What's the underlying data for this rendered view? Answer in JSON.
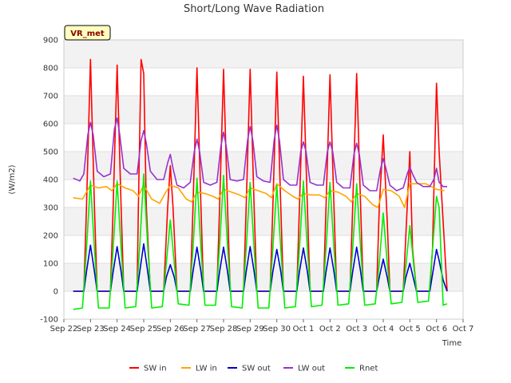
{
  "chart_data": {
    "type": "line",
    "title": "Short/Long Wave Radiation",
    "badge": "VR_met",
    "xlabel": "Time",
    "ylabel": "(W/m2)",
    "ylim": [
      -100,
      900
    ],
    "xlim": [
      0,
      15
    ],
    "yticks": [
      -100,
      0,
      100,
      200,
      300,
      400,
      500,
      600,
      700,
      800,
      900
    ],
    "xticks": [
      {
        "pos": 0,
        "label": "Sep 22"
      },
      {
        "pos": 1,
        "label": "Sep 23"
      },
      {
        "pos": 2,
        "label": "Sep 24"
      },
      {
        "pos": 3,
        "label": "Sep 25"
      },
      {
        "pos": 4,
        "label": "Sep 26"
      },
      {
        "pos": 5,
        "label": "Sep 27"
      },
      {
        "pos": 6,
        "label": "Sep 28"
      },
      {
        "pos": 7,
        "label": "Sep 29"
      },
      {
        "pos": 8,
        "label": "Sep 30"
      },
      {
        "pos": 9,
        "label": "Oct 1"
      },
      {
        "pos": 10,
        "label": "Oct 2"
      },
      {
        "pos": 11,
        "label": "Oct 3"
      },
      {
        "pos": 12,
        "label": "Oct 4"
      },
      {
        "pos": 13,
        "label": "Oct 5"
      },
      {
        "pos": 14,
        "label": "Oct 6"
      },
      {
        "pos": 15,
        "label": "Oct 7"
      }
    ],
    "x_note": "x values are days counted from Sep 22 00:00",
    "grid": true,
    "legend_position": "bottom",
    "series": [
      {
        "name": "SW in",
        "color": "#ff0000",
        "x": [
          0.35,
          0.75,
          0.85,
          1.0,
          1.15,
          1.25,
          1.45,
          1.75,
          1.85,
          2.0,
          2.15,
          2.25,
          2.45,
          2.75,
          2.8,
          2.9,
          3.0,
          3.1,
          3.25,
          3.45,
          3.75,
          3.9,
          4.0,
          4.1,
          4.25,
          4.45,
          4.75,
          4.85,
          5.0,
          5.15,
          5.25,
          5.45,
          5.75,
          5.85,
          6.0,
          6.15,
          6.25,
          6.45,
          6.75,
          6.85,
          7.0,
          7.15,
          7.25,
          7.45,
          7.75,
          7.85,
          8.0,
          8.15,
          8.25,
          8.45,
          8.75,
          8.85,
          9.0,
          9.15,
          9.25,
          9.45,
          9.75,
          9.85,
          10.0,
          10.15,
          10.25,
          10.45,
          10.75,
          10.85,
          11.0,
          11.15,
          11.25,
          11.45,
          11.75,
          11.85,
          12.0,
          12.15,
          12.25,
          12.45,
          12.75,
          12.85,
          13.0,
          13.1,
          13.25,
          13.45,
          13.75,
          13.85,
          13.95,
          14.0,
          14.1,
          14.25,
          14.4
        ],
        "y": [
          0,
          0,
          300,
          830,
          300,
          0,
          0,
          0,
          300,
          810,
          300,
          0,
          0,
          0,
          300,
          830,
          780,
          300,
          0,
          0,
          0,
          300,
          450,
          300,
          0,
          0,
          0,
          300,
          800,
          300,
          0,
          0,
          0,
          300,
          795,
          300,
          0,
          0,
          0,
          300,
          795,
          300,
          0,
          0,
          0,
          300,
          785,
          300,
          0,
          0,
          0,
          300,
          770,
          300,
          0,
          0,
          0,
          300,
          775,
          300,
          0,
          0,
          0,
          300,
          780,
          300,
          0,
          0,
          0,
          300,
          560,
          250,
          0,
          0,
          0,
          200,
          500,
          150,
          0,
          0,
          0,
          150,
          550,
          745,
          500,
          250,
          0
        ]
      },
      {
        "name": "LW in",
        "color": "#ffa500",
        "x": [
          0.35,
          0.7,
          1.0,
          1.3,
          1.6,
          1.8,
          2.0,
          2.3,
          2.6,
          2.8,
          3.0,
          3.3,
          3.6,
          3.8,
          4.0,
          4.3,
          4.6,
          4.8,
          5.0,
          5.3,
          5.6,
          5.8,
          6.0,
          6.3,
          6.6,
          6.8,
          7.0,
          7.3,
          7.6,
          7.8,
          8.0,
          8.3,
          8.6,
          8.8,
          9.0,
          9.3,
          9.6,
          9.8,
          10.0,
          10.3,
          10.6,
          10.8,
          11.0,
          11.3,
          11.6,
          11.8,
          12.0,
          12.3,
          12.6,
          12.8,
          13.0,
          13.3,
          13.6,
          13.8,
          14.0,
          14.3
        ],
        "y": [
          335,
          330,
          380,
          370,
          375,
          360,
          385,
          370,
          360,
          340,
          380,
          330,
          315,
          350,
          380,
          370,
          330,
          320,
          355,
          350,
          340,
          330,
          365,
          355,
          345,
          335,
          370,
          360,
          350,
          335,
          385,
          360,
          340,
          330,
          350,
          345,
          345,
          335,
          360,
          355,
          340,
          320,
          350,
          340,
          310,
          300,
          365,
          360,
          340,
          300,
          385,
          385,
          385,
          375,
          365,
          360
        ]
      },
      {
        "name": "SW out",
        "color": "#0000cc",
        "x": [
          0.35,
          0.75,
          0.85,
          1.0,
          1.15,
          1.25,
          1.45,
          1.75,
          1.85,
          2.0,
          2.15,
          2.25,
          2.45,
          2.75,
          2.85,
          3.0,
          3.15,
          3.25,
          3.45,
          3.75,
          3.85,
          4.0,
          4.15,
          4.25,
          4.45,
          4.75,
          4.85,
          5.0,
          5.15,
          5.25,
          5.45,
          5.75,
          5.85,
          6.0,
          6.15,
          6.25,
          6.45,
          6.75,
          6.85,
          7.0,
          7.15,
          7.25,
          7.45,
          7.75,
          7.85,
          8.0,
          8.15,
          8.25,
          8.45,
          8.75,
          8.85,
          9.0,
          9.15,
          9.25,
          9.45,
          9.75,
          9.85,
          10.0,
          10.15,
          10.25,
          10.45,
          10.75,
          10.85,
          11.0,
          11.15,
          11.25,
          11.45,
          11.75,
          11.85,
          12.0,
          12.15,
          12.25,
          12.45,
          12.75,
          12.85,
          13.0,
          13.15,
          13.25,
          13.45,
          13.75,
          13.85,
          14.0,
          14.1,
          14.25,
          14.4
        ],
        "y": [
          0,
          0,
          70,
          165,
          70,
          0,
          0,
          0,
          70,
          160,
          70,
          0,
          0,
          0,
          70,
          170,
          70,
          0,
          0,
          0,
          50,
          95,
          50,
          0,
          0,
          0,
          70,
          158,
          70,
          0,
          0,
          0,
          70,
          158,
          70,
          0,
          0,
          0,
          70,
          160,
          70,
          0,
          0,
          0,
          70,
          150,
          70,
          0,
          0,
          0,
          70,
          155,
          70,
          0,
          0,
          0,
          70,
          155,
          70,
          0,
          0,
          0,
          70,
          158,
          70,
          0,
          0,
          0,
          50,
          115,
          50,
          0,
          0,
          0,
          50,
          100,
          40,
          0,
          0,
          0,
          60,
          150,
          110,
          40,
          0
        ]
      },
      {
        "name": "LW out",
        "color": "#9932cc",
        "x": [
          0.35,
          0.6,
          0.75,
          0.9,
          1.0,
          1.1,
          1.25,
          1.5,
          1.75,
          1.9,
          2.0,
          2.1,
          2.25,
          2.5,
          2.75,
          2.9,
          3.0,
          3.1,
          3.25,
          3.5,
          3.75,
          3.9,
          4.0,
          4.1,
          4.25,
          4.5,
          4.75,
          4.9,
          5.0,
          5.1,
          5.25,
          5.5,
          5.75,
          5.9,
          6.0,
          6.1,
          6.25,
          6.5,
          6.75,
          6.9,
          7.0,
          7.1,
          7.25,
          7.5,
          7.75,
          7.9,
          8.0,
          8.1,
          8.25,
          8.5,
          8.75,
          8.9,
          9.0,
          9.1,
          9.25,
          9.5,
          9.75,
          9.9,
          10.0,
          10.1,
          10.25,
          10.5,
          10.75,
          10.9,
          11.0,
          11.1,
          11.25,
          11.5,
          11.75,
          11.9,
          12.0,
          12.1,
          12.25,
          12.5,
          12.75,
          12.9,
          13.0,
          13.1,
          13.25,
          13.5,
          13.75,
          13.9,
          14.0,
          14.1,
          14.25,
          14.4
        ],
        "y": [
          405,
          395,
          420,
          560,
          605,
          560,
          430,
          410,
          420,
          580,
          620,
          560,
          440,
          420,
          420,
          540,
          575,
          530,
          430,
          400,
          400,
          460,
          490,
          440,
          380,
          370,
          390,
          500,
          545,
          500,
          390,
          380,
          390,
          520,
          570,
          520,
          400,
          395,
          400,
          540,
          590,
          540,
          410,
          395,
          390,
          540,
          595,
          540,
          400,
          380,
          380,
          500,
          535,
          500,
          390,
          380,
          380,
          500,
          535,
          500,
          390,
          370,
          370,
          490,
          530,
          490,
          380,
          360,
          360,
          440,
          475,
          440,
          380,
          360,
          370,
          420,
          445,
          420,
          390,
          375,
          375,
          400,
          440,
          390,
          375,
          375
        ]
      },
      {
        "name": "Rnet",
        "color": "#00ee00",
        "x": [
          0.35,
          0.7,
          0.85,
          1.0,
          1.15,
          1.3,
          1.7,
          1.85,
          2.0,
          2.15,
          2.3,
          2.7,
          2.85,
          3.0,
          3.15,
          3.3,
          3.7,
          3.85,
          4.0,
          4.15,
          4.3,
          4.7,
          4.85,
          5.0,
          5.15,
          5.3,
          5.7,
          5.85,
          6.0,
          6.15,
          6.3,
          6.7,
          6.85,
          7.0,
          7.15,
          7.3,
          7.7,
          7.85,
          8.0,
          8.15,
          8.3,
          8.7,
          8.85,
          9.0,
          9.15,
          9.3,
          9.7,
          9.85,
          10.0,
          10.15,
          10.3,
          10.7,
          10.85,
          11.0,
          11.15,
          11.3,
          11.7,
          11.85,
          12.0,
          12.15,
          12.3,
          12.7,
          12.85,
          13.0,
          13.15,
          13.3,
          13.7,
          13.85,
          14.0,
          14.1,
          14.25,
          14.4
        ],
        "y": [
          -65,
          -60,
          150,
          395,
          150,
          -60,
          -60,
          150,
          395,
          150,
          -60,
          -55,
          160,
          420,
          160,
          -60,
          -55,
          100,
          255,
          100,
          -45,
          -50,
          150,
          405,
          150,
          -50,
          -50,
          160,
          415,
          160,
          -55,
          -60,
          150,
          390,
          150,
          -60,
          -60,
          150,
          380,
          150,
          -60,
          -55,
          150,
          395,
          150,
          -55,
          -50,
          150,
          390,
          150,
          -50,
          -45,
          150,
          385,
          150,
          -50,
          -45,
          100,
          280,
          100,
          -45,
          -40,
          90,
          235,
          90,
          -40,
          -35,
          150,
          340,
          300,
          -50,
          -45
        ]
      }
    ]
  }
}
